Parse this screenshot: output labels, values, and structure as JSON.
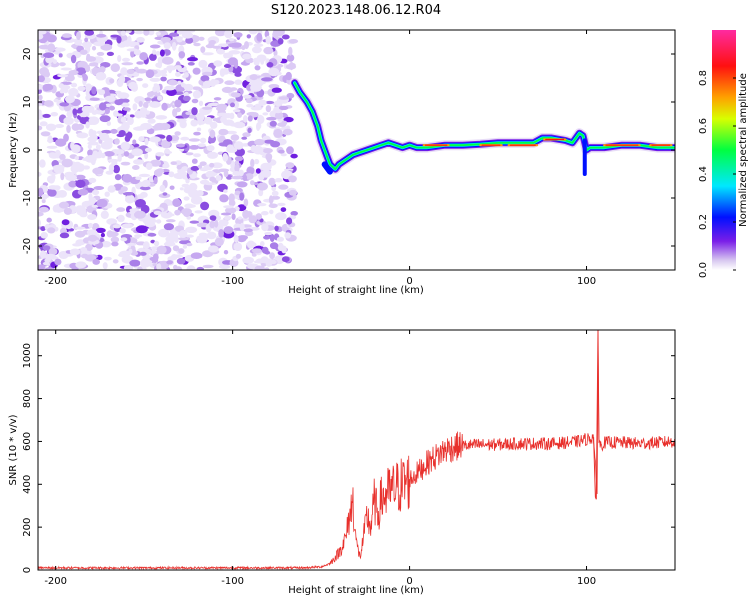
{
  "title": "S120.2023.148.06.12.R04",
  "chart_data": [
    {
      "type": "heatmap",
      "xlabel": "Height of straight line (km)",
      "ylabel": "Frequency (Hz)",
      "xlim": [
        -210,
        150
      ],
      "ylim": [
        -25,
        25
      ],
      "x_ticks": [
        -200,
        -100,
        0,
        100
      ],
      "y_ticks": [
        -20,
        -10,
        0,
        10,
        20
      ],
      "noise_region_x": [
        -210,
        -65
      ],
      "ridge": {
        "x": [
          -65,
          -62,
          -58,
          -55,
          -52,
          -50,
          -47,
          -45,
          -42,
          -40,
          -36,
          -32,
          -28,
          -24,
          -20,
          -16,
          -12,
          -8,
          -4,
          0,
          4,
          10,
          20,
          30,
          40,
          50,
          60,
          70,
          75,
          80,
          88,
          92,
          96,
          98,
          100,
          102,
          105,
          110,
          120,
          130,
          140,
          150
        ],
        "y": [
          14,
          12,
          10,
          8,
          5,
          2,
          -1,
          -3,
          -4,
          -3,
          -2,
          -1,
          -0.5,
          0,
          0.5,
          1,
          1.5,
          1,
          0.5,
          1,
          0.5,
          0.5,
          1,
          1,
          1.2,
          1.5,
          1.5,
          1.5,
          2.5,
          2.5,
          2,
          1.5,
          3.5,
          3,
          0,
          0.5,
          0.5,
          0.5,
          1,
          1,
          0.5,
          0.5
        ]
      },
      "colorbar": {
        "label": "Normalized spectral amplitude",
        "range": [
          0,
          1
        ],
        "ticks": [
          0.0,
          0.2,
          0.4,
          0.6,
          0.8
        ],
        "tick_labels": [
          "0.0",
          "0.2",
          "0.4",
          "0.6",
          "0.8"
        ]
      }
    },
    {
      "type": "line",
      "xlabel": "Height of straight line (km)",
      "ylabel": "SNR (10 * v/v)",
      "xlim": [
        -210,
        150
      ],
      "ylim": [
        0,
        1120
      ],
      "x_ticks": [
        -200,
        -100,
        0,
        100
      ],
      "y_ticks": [
        0,
        200,
        400,
        600,
        800,
        1000
      ],
      "series": [
        {
          "color": "#e8302c",
          "x": [
            -210,
            -150,
            -100,
            -60,
            -50,
            -45,
            -40,
            -36,
            -34,
            -32,
            -30,
            -28,
            -26,
            -24,
            -22,
            -20,
            -18,
            -16,
            -12,
            -8,
            -4,
            0,
            5,
            10,
            15,
            20,
            25,
            30,
            40,
            50,
            60,
            70,
            80,
            90,
            95,
            100,
            104,
            106,
            106.5,
            107,
            108,
            110,
            120,
            130,
            140,
            150
          ],
          "y": [
            10,
            10,
            10,
            10,
            15,
            30,
            80,
            150,
            250,
            320,
            120,
            60,
            150,
            250,
            200,
            320,
            260,
            330,
            360,
            380,
            400,
            420,
            460,
            500,
            530,
            560,
            575,
            580,
            585,
            585,
            590,
            590,
            590,
            595,
            600,
            610,
            620,
            350,
            1100,
            600,
            580,
            595,
            595,
            590,
            595,
            600
          ]
        }
      ]
    }
  ]
}
